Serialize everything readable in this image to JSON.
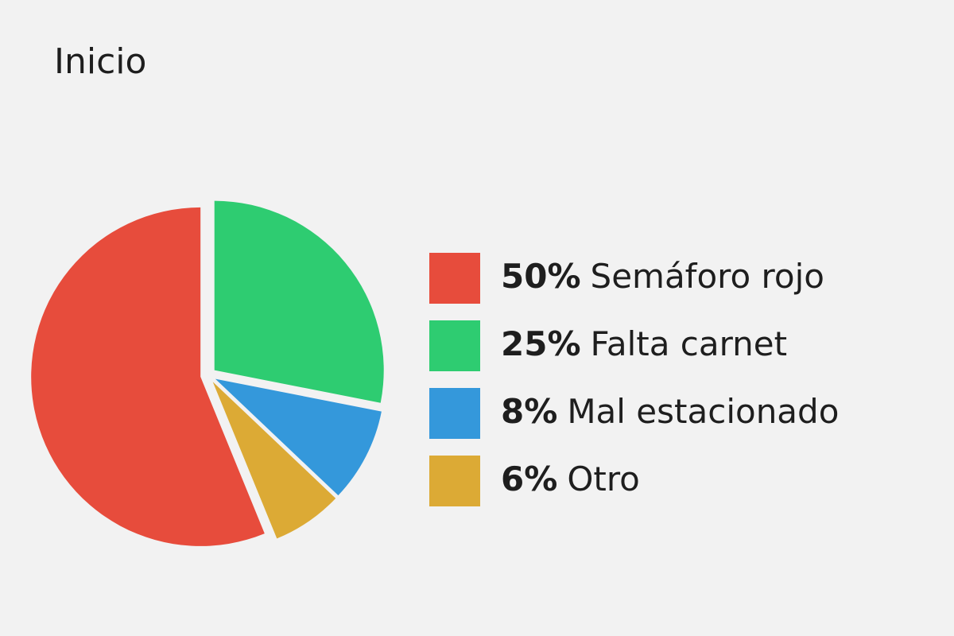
{
  "chart_data": {
    "type": "pie",
    "title": "Inicio",
    "categories": [
      "Semáforo rojo",
      "Falta carnet",
      "Mal estacionado",
      "Otro"
    ],
    "values": [
      50,
      25,
      8,
      6
    ],
    "value_labels": [
      "50%",
      "25%",
      "8%",
      "6%"
    ],
    "colors": [
      "#e74c3c",
      "#2ecc71",
      "#3498db",
      "#dcaa35"
    ]
  }
}
